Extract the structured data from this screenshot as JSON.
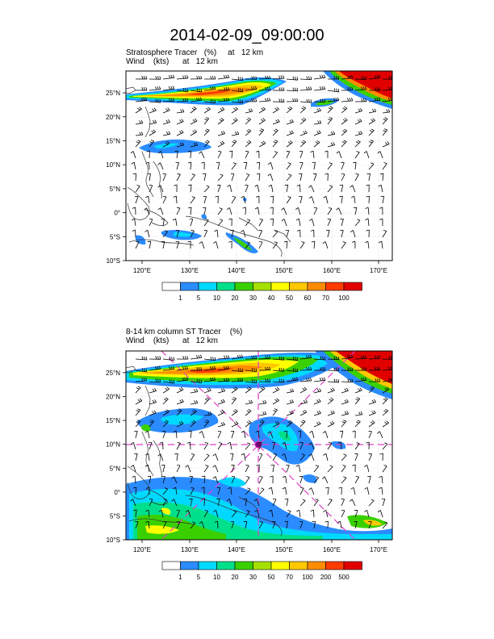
{
  "title": "2014-02-09_09:00:00",
  "panels": [
    {
      "line1": "Stratosphere Tracer   (%)     at   12 km",
      "line2": "Wind    (kts)      at   12 km",
      "lat_labels": [
        "25°N",
        "20°N",
        "15°N",
        "10°N",
        "5°N",
        "0°",
        "5°S",
        "10°S"
      ],
      "lon_labels": [
        "120°E",
        "130°E",
        "140°E",
        "150°E",
        "160°E",
        "170°E"
      ],
      "colorbar_levels": [
        "1",
        "5",
        "10",
        "20",
        "30",
        "40",
        "50",
        "60",
        "70",
        "100"
      ]
    },
    {
      "line1": "8-14 km column ST Tracer    (%)",
      "line2": "Wind    (kts)      at   12 km",
      "lat_labels": [
        "25°N",
        "20°N",
        "15°N",
        "10°N",
        "5°N",
        "0°",
        "5°S",
        "10°S"
      ],
      "lon_labels": [
        "120°E",
        "130°E",
        "140°E",
        "150°E",
        "160°E",
        "170°E"
      ],
      "colorbar_levels": [
        "1",
        "5",
        "10",
        "20",
        "30",
        "50",
        "70",
        "100",
        "200",
        "500"
      ]
    }
  ],
  "colorbar_colors": [
    "#ffffff",
    "#2b8cff",
    "#00d9ff",
    "#00e08a",
    "#3ad000",
    "#a6e000",
    "#ffff00",
    "#ffc800",
    "#ff8c00",
    "#ff3c00",
    "#e00000"
  ],
  "crosshair_color": "#e040c8"
}
